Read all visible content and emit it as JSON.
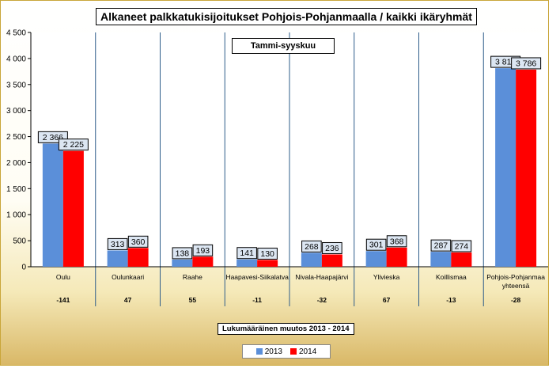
{
  "chart_data": {
    "type": "bar",
    "title": "Alkaneet palkkatukisijoitukset Pohjois-Pohjanmaalla / kaikki ikäryhmät",
    "subtitle": "Tammi-syyskuu",
    "categories": [
      "Oulu",
      "Oulunkaari",
      "Raahe",
      "Haapavesi-Siikalatva",
      "Nivala-Haapajärvi",
      "Ylivieska",
      "Koillismaa",
      "Pohjois-Pohjanmaa yhteensä"
    ],
    "series": [
      {
        "name": "2013",
        "color": "#5b8fd9",
        "values": [
          2366,
          313,
          138,
          141,
          268,
          301,
          287,
          3814
        ],
        "labels": [
          "2 366",
          "313",
          "138",
          "141",
          "268",
          "301",
          "287",
          "3 814"
        ]
      },
      {
        "name": "2014",
        "color": "#ff0000",
        "values": [
          2225,
          360,
          193,
          130,
          236,
          368,
          274,
          3786
        ],
        "labels": [
          "2 225",
          "360",
          "193",
          "130",
          "236",
          "368",
          "274",
          "3 786"
        ]
      }
    ],
    "change_title": "Lukumääräinen muutos 2013 - 2014",
    "changes": [
      "-141",
      "47",
      "55",
      "-11",
      "-32",
      "67",
      "-13",
      "-28"
    ],
    "ylim": [
      0,
      4500
    ],
    "yticks": [
      0,
      500,
      1000,
      1500,
      2000,
      2500,
      3000,
      3500,
      4000,
      4500
    ],
    "ytick_labels": [
      "0",
      "500",
      "1 000",
      "1 500",
      "2 000",
      "2 500",
      "3 000",
      "3 500",
      "4 000",
      "4 500"
    ],
    "legend_position": "bottom"
  }
}
